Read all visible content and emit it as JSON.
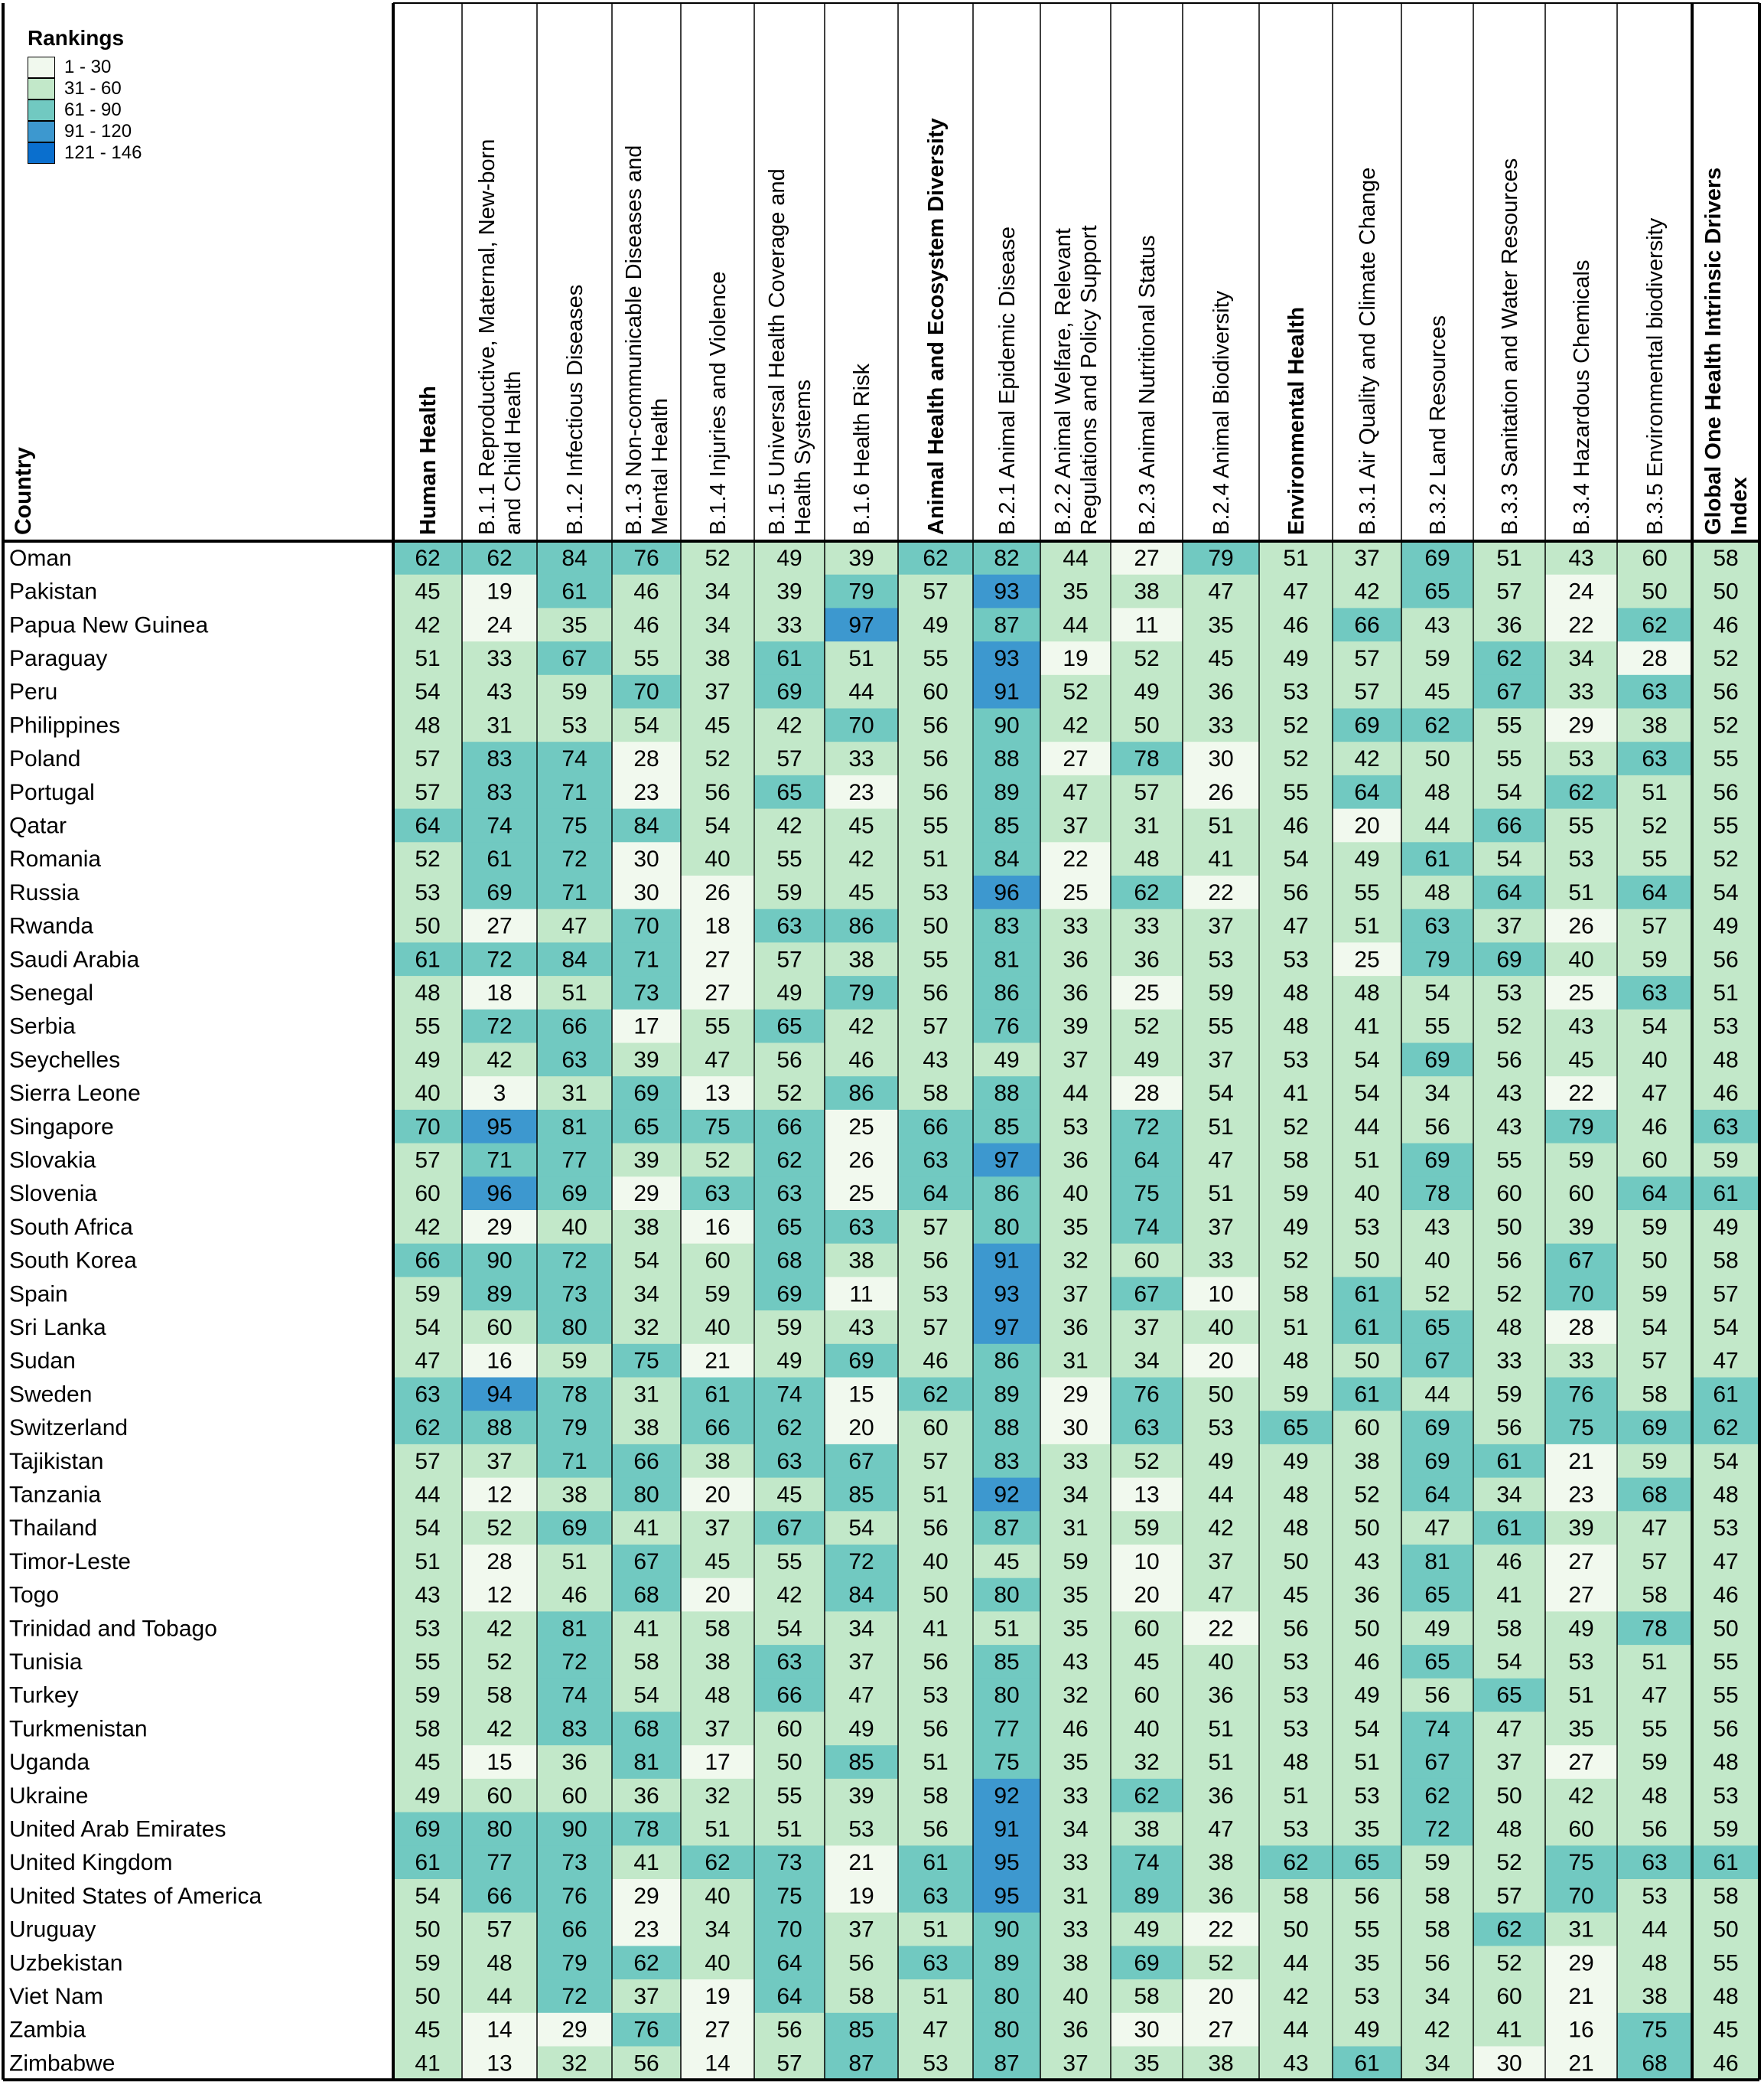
{
  "chart_data": {
    "type": "heatmap",
    "legend": {
      "title": "Rankings",
      "bins": [
        {
          "label": "1 - 30",
          "color": "#f1f9ee"
        },
        {
          "label": "31 - 60",
          "color": "#c2e8c9"
        },
        {
          "label": "61 - 90",
          "color": "#71c9c1"
        },
        {
          "label": "91 - 120",
          "color": "#3d98cf"
        },
        {
          "label": "121 - 146",
          "color": "#0a6fce"
        }
      ]
    },
    "row_header": "Country",
    "columns": [
      {
        "label": "Human Health",
        "bold": true
      },
      {
        "label": "B.1.1 Reproductive, Maternal, New-born and Child Health",
        "bold": false
      },
      {
        "label": "B.1.2 Infectious Diseases",
        "bold": false
      },
      {
        "label": "B.1.3 Non-communicable Diseases and Mental Health",
        "bold": false
      },
      {
        "label": "B.1.4 Injuries and Violence",
        "bold": false
      },
      {
        "label": "B.1.5 Universal Health Coverage and Health Systems",
        "bold": false
      },
      {
        "label": "B.1.6 Health Risk",
        "bold": false
      },
      {
        "label": "Animal Health and Ecosystem Diversity",
        "bold": true
      },
      {
        "label": "B.2.1 Animal Epidemic Disease",
        "bold": false
      },
      {
        "label": "B.2.2 Animal Welfare, Relevant Regulations and Policy Support",
        "bold": false
      },
      {
        "label": "B.2.3 Animal Nutritional Status",
        "bold": false
      },
      {
        "label": "B.2.4 Animal Biodiversity",
        "bold": false
      },
      {
        "label": "Environmental Health",
        "bold": true
      },
      {
        "label": "B.3.1 Air Quality and Climate Change",
        "bold": false
      },
      {
        "label": "B.3.2 Land Resources",
        "bold": false
      },
      {
        "label": "B.3.3 Sanitation and Water Resources",
        "bold": false
      },
      {
        "label": "B.3.4 Hazardous Chemicals",
        "bold": false
      },
      {
        "label": "B.3.5 Environmental biodiversity",
        "bold": false
      },
      {
        "label": "Global One Health Intrinsic Drivers Index",
        "bold": true
      }
    ],
    "rows": [
      {
        "country": "Oman",
        "values": [
          62,
          62,
          84,
          76,
          52,
          49,
          39,
          62,
          82,
          44,
          27,
          79,
          51,
          37,
          69,
          51,
          43,
          60,
          58
        ]
      },
      {
        "country": "Pakistan",
        "values": [
          45,
          19,
          61,
          46,
          34,
          39,
          79,
          57,
          93,
          35,
          38,
          47,
          47,
          42,
          65,
          57,
          24,
          50,
          50
        ]
      },
      {
        "country": "Papua New Guinea",
        "values": [
          42,
          24,
          35,
          46,
          34,
          33,
          97,
          49,
          87,
          44,
          11,
          35,
          46,
          66,
          43,
          36,
          22,
          62,
          46
        ]
      },
      {
        "country": "Paraguay",
        "values": [
          51,
          33,
          67,
          55,
          38,
          61,
          51,
          55,
          93,
          19,
          52,
          45,
          49,
          57,
          59,
          62,
          34,
          28,
          52
        ]
      },
      {
        "country": "Peru",
        "values": [
          54,
          43,
          59,
          70,
          37,
          69,
          44,
          60,
          91,
          52,
          49,
          36,
          53,
          57,
          45,
          67,
          33,
          63,
          56
        ]
      },
      {
        "country": "Philippines",
        "values": [
          48,
          31,
          53,
          54,
          45,
          42,
          70,
          56,
          90,
          42,
          50,
          33,
          52,
          69,
          62,
          55,
          29,
          38,
          52
        ]
      },
      {
        "country": "Poland",
        "values": [
          57,
          83,
          74,
          28,
          52,
          57,
          33,
          56,
          88,
          27,
          78,
          30,
          52,
          42,
          50,
          55,
          53,
          63,
          55
        ]
      },
      {
        "country": "Portugal",
        "values": [
          57,
          83,
          71,
          23,
          56,
          65,
          23,
          56,
          89,
          47,
          57,
          26,
          55,
          64,
          48,
          54,
          62,
          51,
          56
        ]
      },
      {
        "country": "Qatar",
        "values": [
          64,
          74,
          75,
          84,
          54,
          42,
          45,
          55,
          85,
          37,
          31,
          51,
          46,
          20,
          44,
          66,
          55,
          52,
          55
        ]
      },
      {
        "country": "Romania",
        "values": [
          52,
          61,
          72,
          30,
          40,
          55,
          42,
          51,
          84,
          22,
          48,
          41,
          54,
          49,
          61,
          54,
          53,
          55,
          52
        ]
      },
      {
        "country": "Russia",
        "values": [
          53,
          69,
          71,
          30,
          26,
          59,
          45,
          53,
          96,
          25,
          62,
          22,
          56,
          55,
          48,
          64,
          51,
          64,
          54
        ]
      },
      {
        "country": "Rwanda",
        "values": [
          50,
          27,
          47,
          70,
          18,
          63,
          86,
          50,
          83,
          33,
          33,
          37,
          47,
          51,
          63,
          37,
          26,
          57,
          49
        ]
      },
      {
        "country": "Saudi Arabia",
        "values": [
          61,
          72,
          84,
          71,
          27,
          57,
          38,
          55,
          81,
          36,
          36,
          53,
          53,
          25,
          79,
          69,
          40,
          59,
          56
        ]
      },
      {
        "country": "Senegal",
        "values": [
          48,
          18,
          51,
          73,
          27,
          49,
          79,
          56,
          86,
          36,
          25,
          59,
          48,
          48,
          54,
          53,
          25,
          63,
          51
        ]
      },
      {
        "country": "Serbia",
        "values": [
          55,
          72,
          66,
          17,
          55,
          65,
          42,
          57,
          76,
          39,
          52,
          55,
          48,
          41,
          55,
          52,
          43,
          54,
          53
        ]
      },
      {
        "country": "Seychelles",
        "values": [
          49,
          42,
          63,
          39,
          47,
          56,
          46,
          43,
          49,
          37,
          49,
          37,
          53,
          54,
          69,
          56,
          45,
          40,
          48
        ]
      },
      {
        "country": "Sierra Leone",
        "values": [
          40,
          3,
          31,
          69,
          13,
          52,
          86,
          58,
          88,
          44,
          28,
          54,
          41,
          54,
          34,
          43,
          22,
          47,
          46
        ]
      },
      {
        "country": "Singapore",
        "values": [
          70,
          95,
          81,
          65,
          75,
          66,
          25,
          66,
          85,
          53,
          72,
          51,
          52,
          44,
          56,
          43,
          79,
          46,
          63
        ]
      },
      {
        "country": "Slovakia",
        "values": [
          57,
          71,
          77,
          39,
          52,
          62,
          26,
          63,
          97,
          36,
          64,
          47,
          58,
          51,
          69,
          55,
          59,
          60,
          59
        ]
      },
      {
        "country": "Slovenia",
        "values": [
          60,
          96,
          69,
          29,
          63,
          63,
          25,
          64,
          86,
          40,
          75,
          51,
          59,
          40,
          78,
          60,
          60,
          64,
          61
        ]
      },
      {
        "country": "South Africa",
        "values": [
          42,
          29,
          40,
          38,
          16,
          65,
          63,
          57,
          80,
          35,
          74,
          37,
          49,
          53,
          43,
          50,
          39,
          59,
          49
        ]
      },
      {
        "country": "South Korea",
        "values": [
          66,
          90,
          72,
          54,
          60,
          68,
          38,
          56,
          91,
          32,
          60,
          33,
          52,
          50,
          40,
          56,
          67,
          50,
          58
        ]
      },
      {
        "country": "Spain",
        "values": [
          59,
          89,
          73,
          34,
          59,
          69,
          11,
          53,
          93,
          37,
          67,
          10,
          58,
          61,
          52,
          52,
          70,
          59,
          57
        ]
      },
      {
        "country": "Sri Lanka",
        "values": [
          54,
          60,
          80,
          32,
          40,
          59,
          43,
          57,
          97,
          36,
          37,
          40,
          51,
          61,
          65,
          48,
          28,
          54,
          54
        ]
      },
      {
        "country": "Sudan",
        "values": [
          47,
          16,
          59,
          75,
          21,
          49,
          69,
          46,
          86,
          31,
          34,
          20,
          48,
          50,
          67,
          33,
          33,
          57,
          47
        ]
      },
      {
        "country": "Sweden",
        "values": [
          63,
          94,
          78,
          31,
          61,
          74,
          15,
          62,
          89,
          29,
          76,
          50,
          59,
          61,
          44,
          59,
          76,
          58,
          61
        ]
      },
      {
        "country": "Switzerland",
        "values": [
          62,
          88,
          79,
          38,
          66,
          62,
          20,
          60,
          88,
          30,
          63,
          53,
          65,
          60,
          69,
          56,
          75,
          69,
          62
        ]
      },
      {
        "country": "Tajikistan",
        "values": [
          57,
          37,
          71,
          66,
          38,
          63,
          67,
          57,
          83,
          33,
          52,
          49,
          49,
          38,
          69,
          61,
          21,
          59,
          54
        ]
      },
      {
        "country": "Tanzania",
        "values": [
          44,
          12,
          38,
          80,
          20,
          45,
          85,
          51,
          92,
          34,
          13,
          44,
          48,
          52,
          64,
          34,
          23,
          68,
          48
        ]
      },
      {
        "country": "Thailand",
        "values": [
          54,
          52,
          69,
          41,
          37,
          67,
          54,
          56,
          87,
          31,
          59,
          42,
          48,
          50,
          47,
          61,
          39,
          47,
          53
        ]
      },
      {
        "country": "Timor-Leste",
        "values": [
          51,
          28,
          51,
          67,
          45,
          55,
          72,
          40,
          45,
          59,
          10,
          37,
          50,
          43,
          81,
          46,
          27,
          57,
          47
        ]
      },
      {
        "country": "Togo",
        "values": [
          43,
          12,
          46,
          68,
          20,
          42,
          84,
          50,
          80,
          35,
          20,
          47,
          45,
          36,
          65,
          41,
          27,
          58,
          46
        ]
      },
      {
        "country": "Trinidad and Tobago",
        "values": [
          53,
          42,
          81,
          41,
          58,
          54,
          34,
          41,
          51,
          35,
          60,
          22,
          56,
          50,
          49,
          58,
          49,
          78,
          50
        ]
      },
      {
        "country": "Tunisia",
        "values": [
          55,
          52,
          72,
          58,
          38,
          63,
          37,
          56,
          85,
          43,
          45,
          40,
          53,
          46,
          65,
          54,
          53,
          51,
          55
        ]
      },
      {
        "country": "Turkey",
        "values": [
          59,
          58,
          74,
          54,
          48,
          66,
          47,
          53,
          80,
          32,
          60,
          36,
          53,
          49,
          56,
          65,
          51,
          47,
          55
        ]
      },
      {
        "country": "Turkmenistan",
        "values": [
          58,
          42,
          83,
          68,
          37,
          60,
          49,
          56,
          77,
          46,
          40,
          51,
          53,
          54,
          74,
          47,
          35,
          55,
          56
        ]
      },
      {
        "country": "Uganda",
        "values": [
          45,
          15,
          36,
          81,
          17,
          50,
          85,
          51,
          75,
          35,
          32,
          51,
          48,
          51,
          67,
          37,
          27,
          59,
          48
        ]
      },
      {
        "country": "Ukraine",
        "values": [
          49,
          60,
          60,
          36,
          32,
          55,
          39,
          58,
          92,
          33,
          62,
          36,
          51,
          53,
          62,
          50,
          42,
          48,
          53
        ]
      },
      {
        "country": "United Arab Emirates",
        "values": [
          69,
          80,
          90,
          78,
          51,
          51,
          53,
          56,
          91,
          34,
          38,
          47,
          53,
          35,
          72,
          48,
          60,
          56,
          59
        ]
      },
      {
        "country": "United Kingdom",
        "values": [
          61,
          77,
          73,
          41,
          62,
          73,
          21,
          61,
          95,
          33,
          74,
          38,
          62,
          65,
          59,
          52,
          75,
          63,
          61
        ]
      },
      {
        "country": "United States of America",
        "values": [
          54,
          66,
          76,
          29,
          40,
          75,
          19,
          63,
          95,
          31,
          89,
          36,
          58,
          56,
          58,
          57,
          70,
          53,
          58
        ]
      },
      {
        "country": "Uruguay",
        "values": [
          50,
          57,
          66,
          23,
          34,
          70,
          37,
          51,
          90,
          33,
          49,
          22,
          50,
          55,
          58,
          62,
          31,
          44,
          50
        ]
      },
      {
        "country": "Uzbekistan",
        "values": [
          59,
          48,
          79,
          62,
          40,
          64,
          56,
          63,
          89,
          38,
          69,
          52,
          44,
          35,
          56,
          52,
          29,
          48,
          55
        ]
      },
      {
        "country": "Viet Nam",
        "values": [
          50,
          44,
          72,
          37,
          19,
          64,
          58,
          51,
          80,
          40,
          58,
          20,
          42,
          53,
          34,
          60,
          21,
          38,
          48
        ]
      },
      {
        "country": "Zambia",
        "values": [
          45,
          14,
          29,
          76,
          27,
          56,
          85,
          47,
          80,
          36,
          30,
          27,
          44,
          49,
          42,
          41,
          16,
          75,
          45
        ]
      },
      {
        "country": "Zimbabwe",
        "values": [
          41,
          13,
          32,
          56,
          14,
          57,
          87,
          53,
          87,
          37,
          35,
          38,
          43,
          61,
          34,
          30,
          21,
          68,
          46
        ]
      }
    ]
  }
}
